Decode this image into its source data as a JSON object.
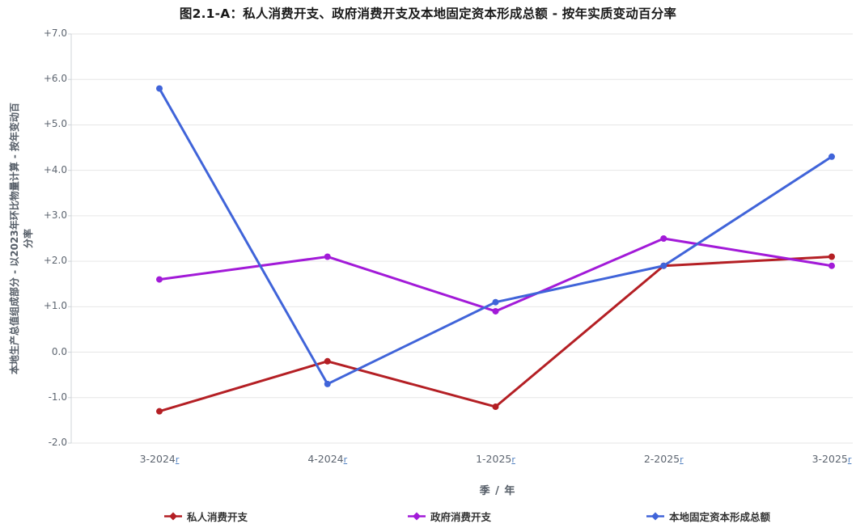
{
  "title": "图2.1-A：私人消费开支、政府消费开支及本地固定资本形成总额 - 按年实质变动百分率",
  "chart_data": {
    "type": "line",
    "categories": [
      "3-2024",
      "4-2024",
      "1-2025",
      "2-2025",
      "3-2025"
    ],
    "revision_mark": "r",
    "series": [
      {
        "name": "私人消费开支",
        "color": "#b41f24",
        "values": [
          -1.3,
          -0.2,
          -1.2,
          1.9,
          2.1
        ]
      },
      {
        "name": "政府消费开支",
        "color": "#a21ad8",
        "values": [
          1.6,
          2.1,
          0.9,
          2.5,
          1.9
        ]
      },
      {
        "name": "本地固定资本形成总额",
        "color": "#4064d9",
        "values": [
          5.8,
          -0.7,
          1.1,
          1.9,
          4.3
        ]
      }
    ],
    "xlabel": "季 / 年",
    "ylabel": "本地生产总值组成部分 - 以2023年环比物量计算 - 按年变动百分率",
    "ylabel_lines": [
      "本地生产总值组成部分 - 以2023年环比物量计算 - 按年变动百",
      "分率"
    ],
    "ylim": [
      -2.0,
      7.0
    ],
    "ytick_step": 1.0,
    "ytick_labels": [
      "+7.0",
      "+6.0",
      "+5.0",
      "+4.0",
      "+3.0",
      "+2.0",
      "+1.0",
      "0.0",
      "-1.0",
      "-2.0"
    ],
    "grid": "horizontal",
    "legend_position": "bottom",
    "marker": "circle"
  },
  "colors": {
    "background": "#ffffff",
    "gridline": "#e6e6e6",
    "axis_line": "#cfd4d9",
    "tick_text": "#5d6570",
    "axis_title_text": "#565e68",
    "title_text": "#1a1a1a",
    "revision_link": "#4d7ebf",
    "legend_text": "#333333"
  }
}
